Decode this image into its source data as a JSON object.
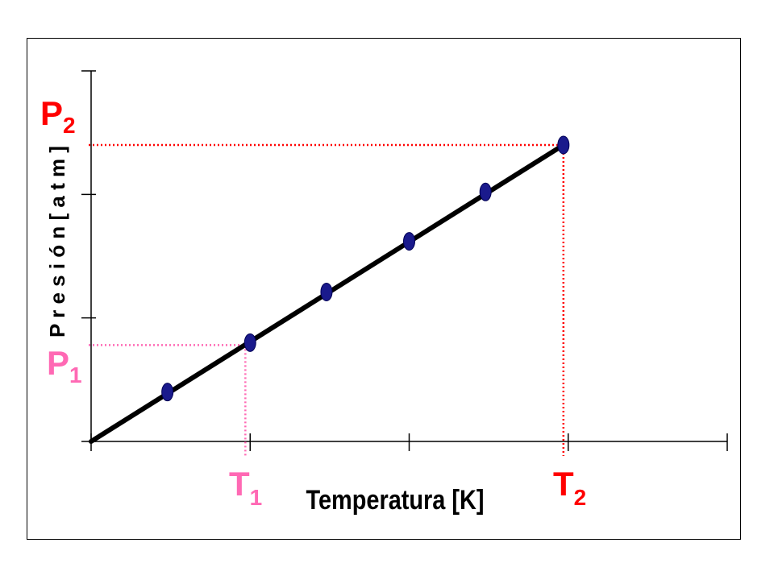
{
  "chart_data": {
    "type": "line",
    "xlabel": "Temperatura [K]",
    "ylabel": "P r e s i ó n  [ a t m ]",
    "xlim": [
      0,
      4
    ],
    "ylim": [
      0,
      3
    ],
    "x_ticks": [
      0,
      1,
      2,
      3,
      4
    ],
    "y_ticks": [
      0,
      1,
      2,
      3
    ],
    "grid": false,
    "series": [
      {
        "x": [
          0.48,
          1.0,
          1.48,
          2.0,
          2.48,
          2.97
        ],
        "y": [
          0.4,
          0.8,
          1.21,
          1.62,
          2.02,
          2.4
        ],
        "line": {
          "x": [
            0,
            2.97
          ],
          "y": [
            0,
            2.4
          ]
        },
        "color": "#000000",
        "marker_color": "#1a1a8c"
      }
    ],
    "annotations": {
      "point1": {
        "t": {
          "base": "T",
          "sub": "1"
        },
        "p": {
          "base": "P",
          "sub": "1"
        },
        "x": 0.97,
        "y": 0.78,
        "color": "#ff69b4"
      },
      "point2": {
        "t": {
          "base": "T",
          "sub": "2"
        },
        "p": {
          "base": "P",
          "sub": "2"
        },
        "x": 2.97,
        "y": 2.4,
        "color": "#ff0000"
      }
    }
  }
}
